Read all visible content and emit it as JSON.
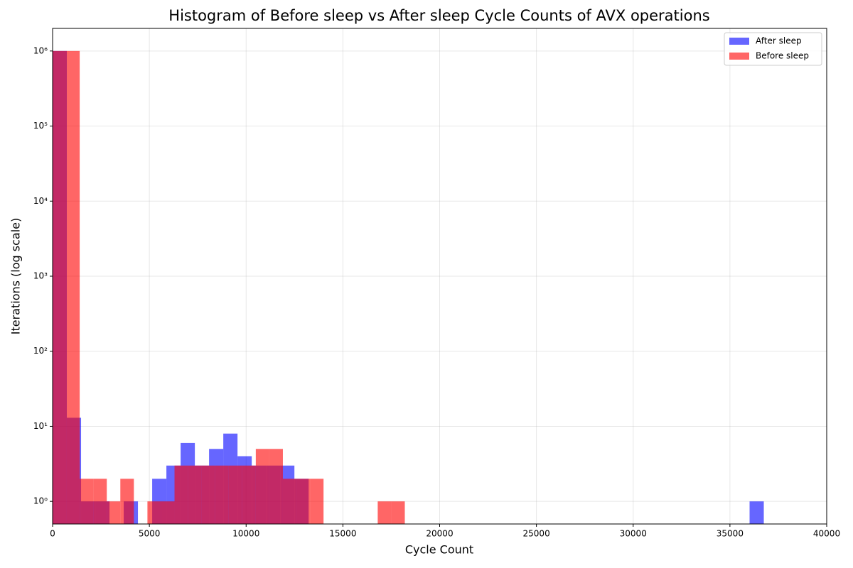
{
  "chart_data": {
    "type": "histogram",
    "title": "Histogram of Before sleep vs After sleep Cycle Counts of AVX operations",
    "xlabel": "Cycle Count",
    "ylabel": "Iterations (log scale)",
    "log_y": true,
    "grid": true,
    "legend": "upper right",
    "xlim": [
      0,
      40000
    ],
    "xticks": [
      0,
      5000,
      10000,
      15000,
      20000,
      25000,
      30000,
      35000,
      40000
    ],
    "ylim": [
      0.5,
      2000000
    ],
    "yticks": [
      {
        "value": 1,
        "label": "10⁰"
      },
      {
        "value": 10,
        "label": "10¹"
      },
      {
        "value": 100,
        "label": "10²"
      },
      {
        "value": 1000,
        "label": "10³"
      },
      {
        "value": 10000,
        "label": "10⁴"
      },
      {
        "value": 100000,
        "label": "10⁵"
      },
      {
        "value": 1000000,
        "label": "10⁶"
      }
    ],
    "series": [
      {
        "name": "After sleep",
        "color": "#0000ff",
        "opacity": 0.6,
        "bins": [
          0,
          735,
          1470,
          2205,
          2940,
          3675,
          4410,
          5145,
          5880,
          6615,
          7350,
          8085,
          8820,
          9555,
          10290,
          11025,
          11760,
          12495,
          13230,
          13965,
          14700,
          15435,
          16170,
          16905,
          17640,
          18375,
          19110,
          19845,
          20580,
          21315,
          22050,
          22785,
          23520,
          24255,
          24990,
          25725,
          26460,
          27195,
          27930,
          28665,
          29400,
          30135,
          30870,
          31605,
          32340,
          33075,
          33810,
          34545,
          35280,
          36015,
          36750
        ],
        "values": [
          1000000,
          13,
          1,
          1,
          0,
          1,
          0,
          2,
          3,
          6,
          3,
          5,
          8,
          4,
          3,
          3,
          3,
          2,
          0,
          0,
          0,
          0,
          0,
          0,
          0,
          0,
          0,
          0,
          0,
          0,
          0,
          0,
          0,
          0,
          0,
          0,
          0,
          0,
          0,
          0,
          0,
          0,
          0,
          0,
          0,
          0,
          0,
          0,
          0,
          1
        ]
      },
      {
        "name": "Before sleep",
        "color": "#ff0000",
        "opacity": 0.6,
        "bins": [
          0,
          700,
          1400,
          2100,
          2800,
          3500,
          4200,
          4900,
          5600,
          6300,
          7000,
          7700,
          8400,
          9100,
          9800,
          10500,
          11200,
          11900,
          12600,
          13300,
          14000,
          14700,
          15400,
          16100,
          16800,
          17500,
          18200
        ],
        "values": [
          1000000,
          1000000,
          2,
          2,
          1,
          2,
          0,
          1,
          1,
          3,
          3,
          3,
          3,
          3,
          3,
          5,
          5,
          2,
          2,
          2,
          0,
          0,
          0,
          0,
          1,
          1
        ]
      }
    ]
  }
}
